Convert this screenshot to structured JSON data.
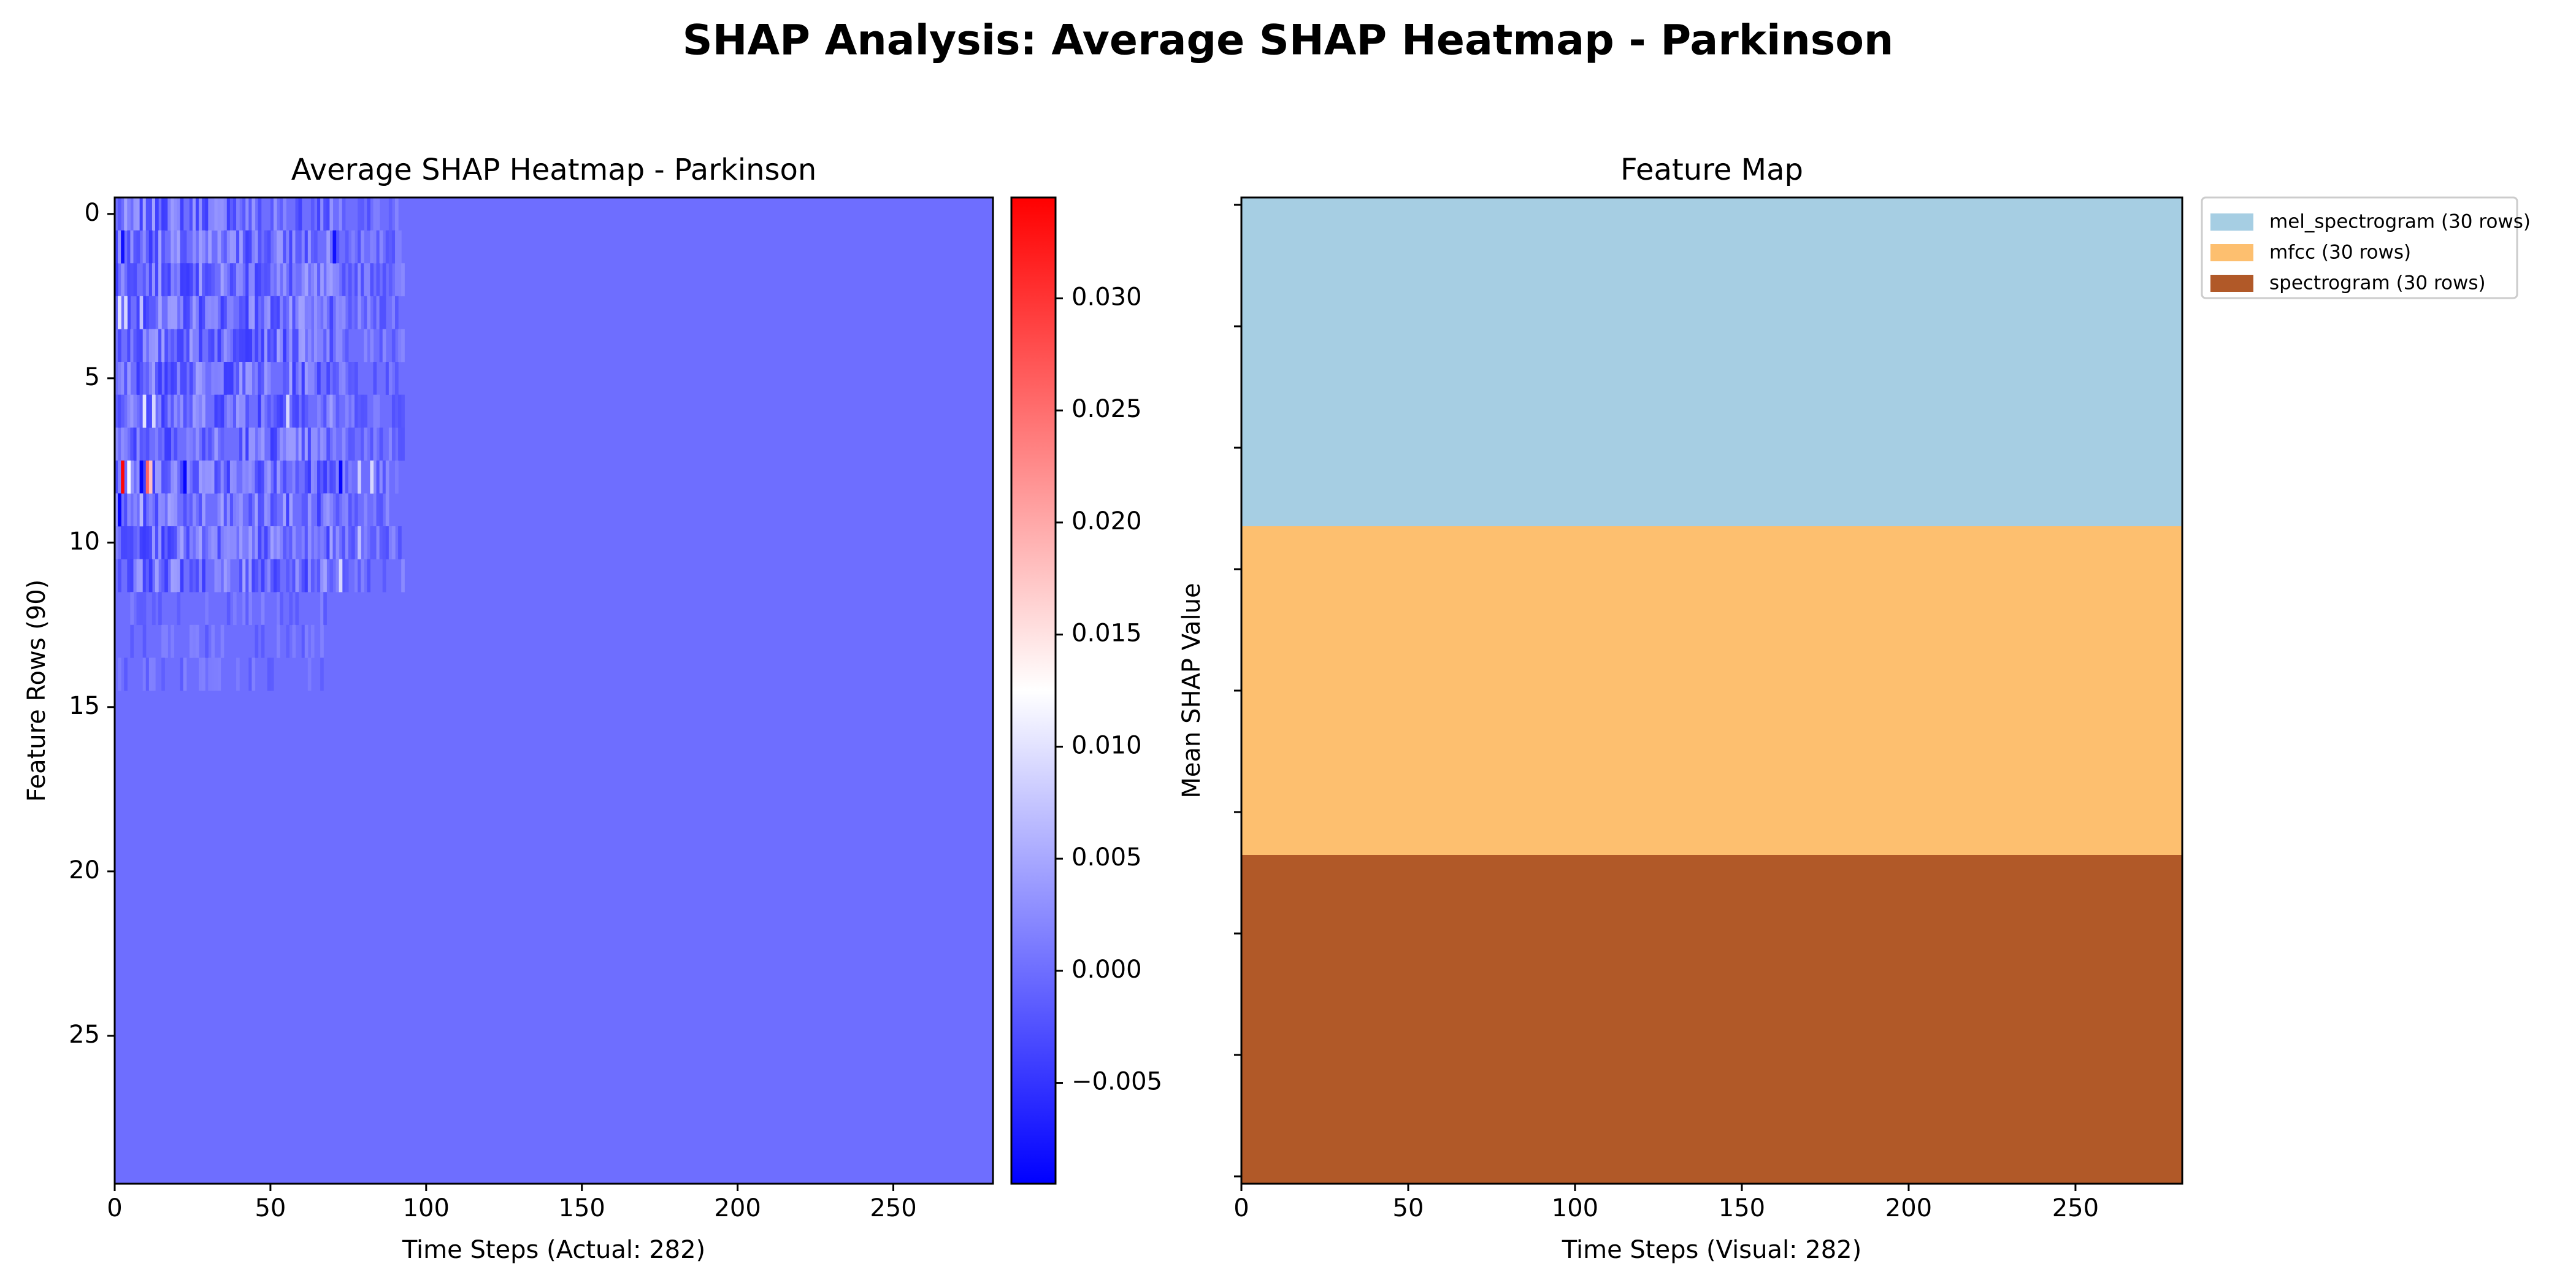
{
  "figure": {
    "suptitle": "SHAP Analysis: Average SHAP Heatmap - Parkinson"
  },
  "chart_data": [
    {
      "type": "heatmap",
      "title": "Average SHAP Heatmap - Parkinson",
      "xlabel": "Time Steps (Actual: 282)",
      "ylabel": "Feature Rows (90)",
      "xlim": [
        0,
        282
      ],
      "ylim": [
        29.5,
        -0.5
      ],
      "xticks": [
        0,
        50,
        100,
        150,
        200,
        250
      ],
      "yticks": [
        0,
        5,
        10,
        15,
        20,
        25
      ],
      "n_rows_shown": 30,
      "n_cols": 282,
      "colormap": "bwr",
      "colorbar": {
        "vmin": -0.0095,
        "vmax": 0.0345,
        "ticks": [
          -0.005,
          0.0,
          0.005,
          0.01,
          0.015,
          0.02,
          0.025,
          0.03
        ],
        "tick_labels": [
          "−0.005",
          "0.000",
          "0.005",
          "0.010",
          "0.015",
          "0.020",
          "0.025",
          "0.030"
        ]
      },
      "background_value": 0.0,
      "active_region": {
        "rows": [
          0,
          14
        ],
        "cols": [
          0,
          92
        ]
      },
      "notable_cells": [
        {
          "row": 8,
          "col": 2,
          "value": 0.034
        },
        {
          "row": 8,
          "col": 10,
          "value": 0.026
        },
        {
          "row": 8,
          "col": 11,
          "value": 0.018
        },
        {
          "row": 8,
          "col": 4,
          "value": 0.012
        },
        {
          "row": 8,
          "col": 8,
          "value": -0.009
        },
        {
          "row": 8,
          "col": 22,
          "value": -0.009
        },
        {
          "row": 8,
          "col": 72,
          "value": -0.009
        },
        {
          "row": 8,
          "col": 78,
          "value": 0.008
        },
        {
          "row": 8,
          "col": 82,
          "value": 0.009
        },
        {
          "row": 9,
          "col": 1,
          "value": -0.009
        },
        {
          "row": 9,
          "col": 8,
          "value": 0.006
        },
        {
          "row": 3,
          "col": 1,
          "value": 0.01
        },
        {
          "row": 3,
          "col": 3,
          "value": 0.009
        },
        {
          "row": 3,
          "col": 8,
          "value": 0.007
        },
        {
          "row": 6,
          "col": 9,
          "value": 0.01
        },
        {
          "row": 6,
          "col": 12,
          "value": 0.009
        },
        {
          "row": 6,
          "col": 55,
          "value": 0.009
        },
        {
          "row": 11,
          "col": 72,
          "value": 0.009
        },
        {
          "row": 10,
          "col": 78,
          "value": 0.007
        },
        {
          "row": 1,
          "col": 2,
          "value": -0.008
        },
        {
          "row": 1,
          "col": 70,
          "value": -0.008
        },
        {
          "row": 1,
          "col": 30,
          "value": 0.004
        },
        {
          "row": 1,
          "col": 40,
          "value": 0.004
        }
      ]
    },
    {
      "type": "bar",
      "title": "Feature Map",
      "xlabel": "Time Steps (Visual: 282)",
      "ylabel": "Mean SHAP Value",
      "xlim": [
        0,
        282
      ],
      "xticks": [
        0,
        50,
        100,
        150,
        200,
        250
      ],
      "n_yticks": 9,
      "categories": [
        "mel_spectrogram (30 rows)",
        "mfcc (30 rows)",
        "spectrogram (30 rows)"
      ],
      "series": [
        {
          "name": "mel_spectrogram (30 rows)",
          "rows": 30,
          "color": "#a6cee3"
        },
        {
          "name": "mfcc (30 rows)",
          "rows": 30,
          "color": "#fdbf6f"
        },
        {
          "name": "spectrogram (30 rows)",
          "rows": 30,
          "color": "#b15928"
        }
      ],
      "legend": {
        "placement": "upper right, outside"
      }
    }
  ]
}
